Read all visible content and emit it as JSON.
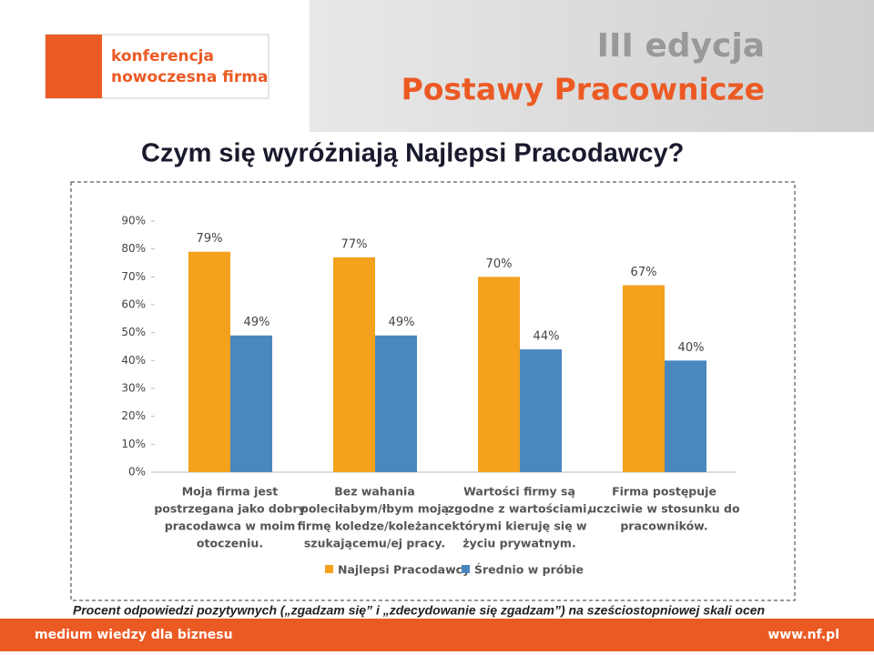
{
  "header": {
    "logo_line1": "konferencja",
    "logo_line2": "nowoczesna firma",
    "edition": "III edycja",
    "event": "Postawy Pracownicze"
  },
  "slide_title": "Czym się wyróżniają Najlepsi Pracodawcy?",
  "chart_data": {
    "type": "bar",
    "categories": [
      [
        "Moja firma jest",
        "postrzegana jako dobry",
        "pracodawca w moim",
        "otoczeniu."
      ],
      [
        "Bez wahania",
        "poleciłabym/łbym moją",
        "firmę koledze/koleżance",
        "szukającemu/ej pracy."
      ],
      [
        "Wartości firmy są",
        "zgodne z wartościami,",
        "którymi kieruję się w",
        "życiu prywatnym."
      ],
      [
        "Firma postępuje",
        "uczciwie w stosunku do",
        "pracowników."
      ]
    ],
    "series": [
      {
        "name": "Najlepsi Pracodawcy",
        "color": "#f4a11d",
        "values": [
          79,
          77,
          70,
          67
        ],
        "value_labels": [
          "79%",
          "77%",
          "70%",
          "67%"
        ]
      },
      {
        "name": "Średnio w próbie",
        "color": "#4a87bf",
        "values": [
          49,
          49,
          44,
          40
        ],
        "value_labels": [
          "49%",
          "49%",
          "44%",
          "40%"
        ]
      }
    ],
    "ylim": [
      0,
      90
    ],
    "yticks": [
      {
        "value": 0,
        "label": "0%"
      },
      {
        "value": 10,
        "label": "10%"
      },
      {
        "value": 20,
        "label": "20%"
      },
      {
        "value": 30,
        "label": "30%"
      },
      {
        "value": 40,
        "label": "40%"
      },
      {
        "value": 50,
        "label": "50%"
      },
      {
        "value": 60,
        "label": "60%"
      },
      {
        "value": 70,
        "label": "70%"
      },
      {
        "value": 80,
        "label": "80%"
      },
      {
        "value": 90,
        "label": "90%"
      }
    ],
    "legend": "bottom"
  },
  "note": "Procent odpowiedzi pozytywnych („zgadzam się” i „zdecydowanie się zgadzam”) na sześciostopniowej skali ocen",
  "footer": {
    "tagline": "medium wiedzy dla biznesu",
    "url": "www.nf.pl"
  }
}
